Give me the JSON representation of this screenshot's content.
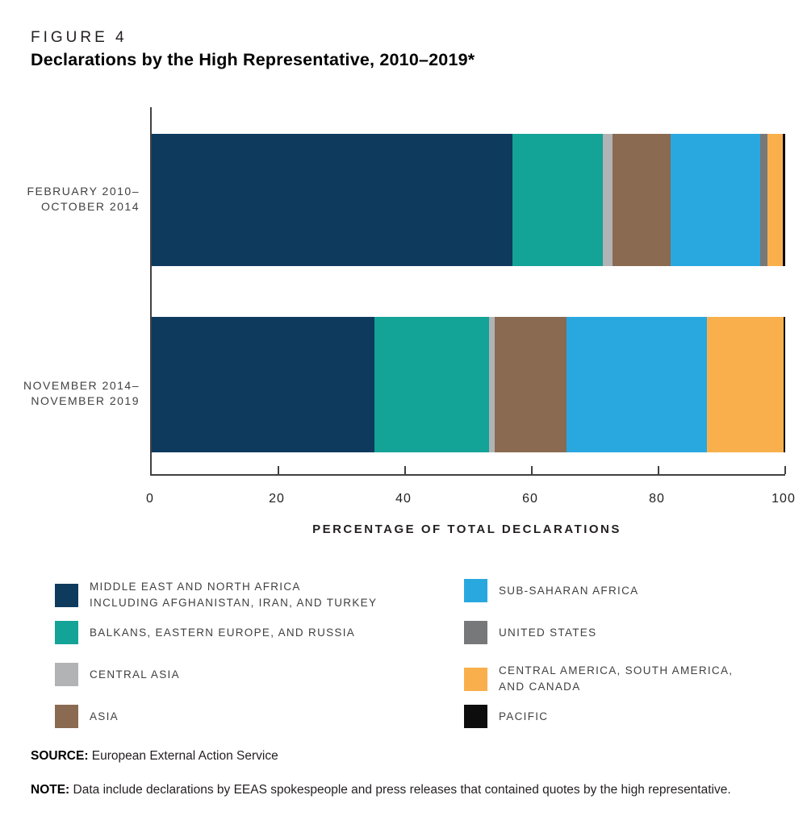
{
  "header": {
    "figure_label": "FIGURE 4",
    "title": "Declarations by the High Representative, 2010–2019*"
  },
  "chart_data": {
    "type": "bar",
    "orientation": "horizontal",
    "stacked": true,
    "title": "Declarations by the High Representative, 2010–2019*",
    "xlabel": "PERCENTAGE OF TOTAL DECLARATIONS",
    "xlim": [
      0,
      100
    ],
    "x_ticks": [
      0,
      20,
      40,
      60,
      80,
      100
    ],
    "grid": false,
    "legend_position": "bottom",
    "categories": [
      "FEBRUARY 2010–OCTOBER 2014",
      "NOVEMBER 2014–NOVEMBER 2019"
    ],
    "category_label_lines": [
      [
        "FEBRUARY 2010–",
        "OCTOBER 2014"
      ],
      [
        "NOVEMBER 2014–",
        "NOVEMBER 2019"
      ]
    ],
    "series": [
      {
        "name": "MIDDLE EAST AND NORTH AFRICA INCLUDING AFGHANISTAN, IRAN, AND TURKEY",
        "legend_lines": [
          "MIDDLE EAST AND NORTH AFRICA",
          "INCLUDING AFGHANISTAN, IRAN, AND TURKEY"
        ],
        "color": "#0e3a5e",
        "values": [
          57.0,
          35.2
        ]
      },
      {
        "name": "BALKANS, EASTERN EUROPE, AND RUSSIA",
        "legend_lines": [
          "BALKANS, EASTERN EUROPE, AND RUSSIA"
        ],
        "color": "#14a397",
        "values": [
          14.2,
          18.0
        ]
      },
      {
        "name": "CENTRAL ASIA",
        "legend_lines": [
          "CENTRAL ASIA"
        ],
        "color": "#b1b3b5",
        "values": [
          1.5,
          0.9
        ]
      },
      {
        "name": "ASIA",
        "legend_lines": [
          "ASIA"
        ],
        "color": "#8a6a50",
        "values": [
          9.2,
          11.4
        ]
      },
      {
        "name": "SUB-SAHARAN AFRICA",
        "legend_lines": [
          "SUB-SAHARAN AFRICA"
        ],
        "color": "#29a8e0",
        "values": [
          14.1,
          22.2
        ]
      },
      {
        "name": "UNITED STATES",
        "legend_lines": [
          "UNITED STATES"
        ],
        "color": "#77787a",
        "values": [
          1.2,
          0
        ]
      },
      {
        "name": "CENTRAL AMERICA, SOUTH AMERICA, AND CANADA",
        "legend_lines": [
          "CENTRAL AMERICA, SOUTH AMERICA,",
          "AND CANADA"
        ],
        "color": "#f9b04c",
        "values": [
          2.4,
          12.0
        ]
      },
      {
        "name": "PACIFIC",
        "legend_lines": [
          "PACIFIC"
        ],
        "color": "#0d0d0d",
        "values": [
          0.4,
          0.3
        ]
      }
    ],
    "legend_columns": [
      [
        0,
        1,
        2,
        3
      ],
      [
        4,
        5,
        6,
        7
      ]
    ]
  },
  "footer": {
    "source_label": "SOURCE:",
    "source_text": "European External Action Service",
    "note_label": "NOTE:",
    "note_text": "Data include declarations by EEAS spokespeople and press releases that contained quotes by the high representative."
  }
}
